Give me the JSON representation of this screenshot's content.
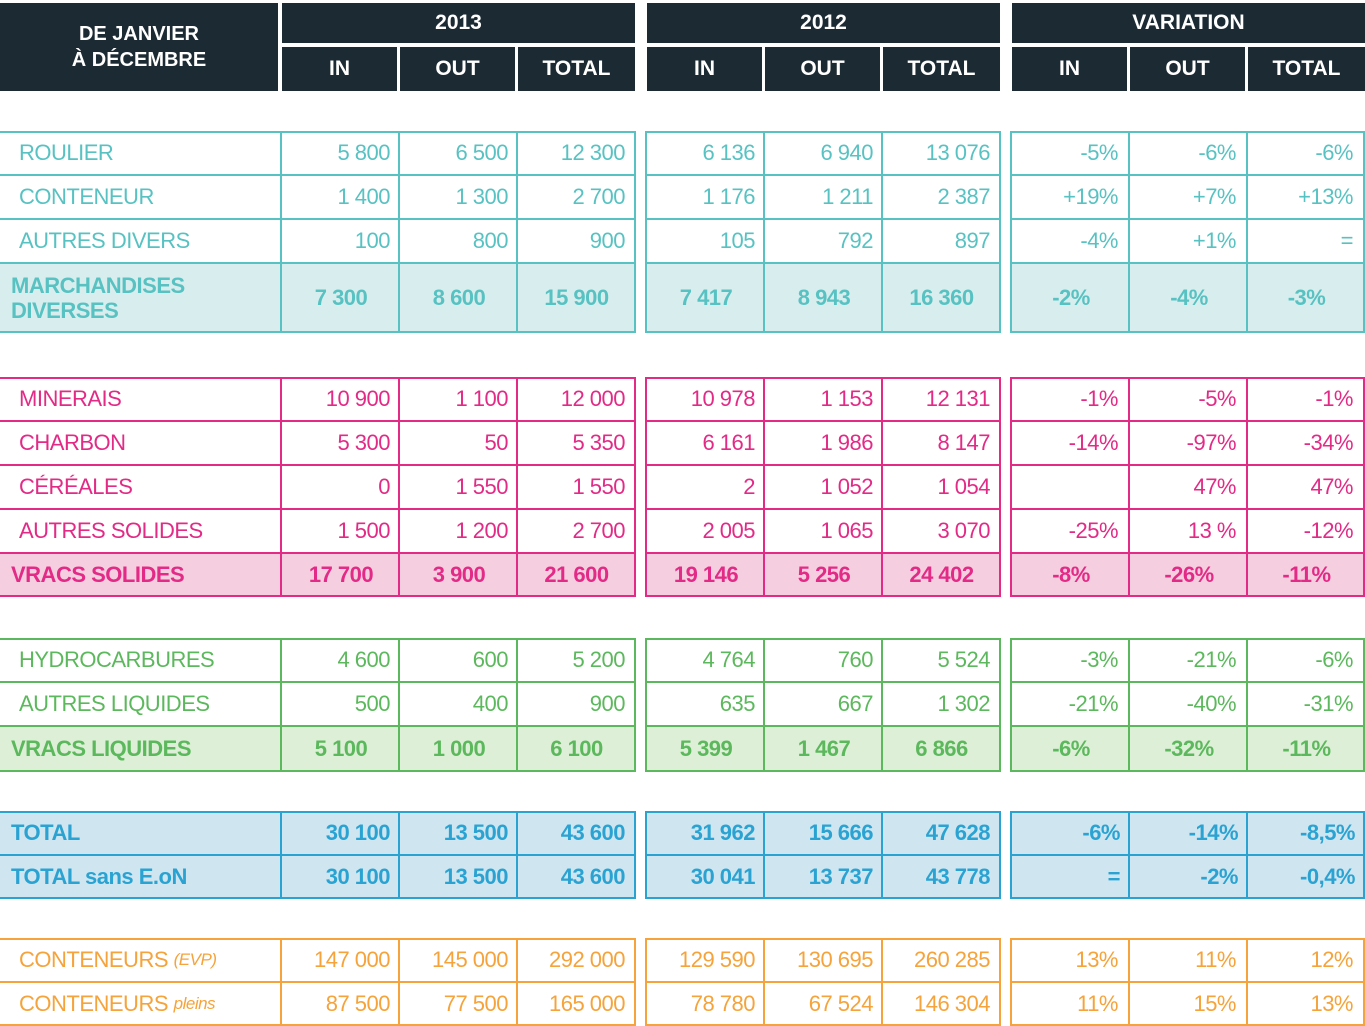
{
  "header": {
    "corner_line1": "DE JANVIER",
    "corner_line2": "À DÉCEMBRE",
    "groups": [
      "2013",
      "2012",
      "VARIATION"
    ],
    "subcols": [
      "IN",
      "OUT",
      "TOTAL",
      "IN",
      "OUT",
      "TOTAL",
      "IN",
      "OUT",
      "TOTAL"
    ]
  },
  "colors": {
    "header_bg": "#1b2a33",
    "teal": "#58c2c2",
    "teal_fill": "#d8eeee",
    "pink": "#e22a86",
    "pink_fill": "#f5cfe0",
    "green": "#5cb85c",
    "green_fill": "#ddefd6",
    "blue": "#2aa3d2",
    "blue_fill": "#cfe6f1",
    "orange": "#f5a33a"
  },
  "sections": [
    {
      "name": "marchandises-diverses",
      "rows": [
        {
          "label": "ROULIER",
          "values": [
            "5 800",
            "6 500",
            "12 300",
            "6 136",
            "6 940",
            "13 076",
            "-5%",
            "-6%",
            "-6%"
          ]
        },
        {
          "label": "CONTENEUR",
          "values": [
            "1 400",
            "1 300",
            "2 700",
            "1 176",
            "1 211",
            "2 387",
            "+19%",
            "+7%",
            "+13%"
          ]
        },
        {
          "label": "AUTRES DIVERS",
          "values": [
            "100",
            "800",
            "900",
            "105",
            "792",
            "897",
            "-4%",
            "+1%",
            "="
          ]
        }
      ],
      "total": {
        "label_line1": "MARCHANDISES",
        "label_line2": "DIVERSES",
        "values": [
          "7 300",
          "8 600",
          "15 900",
          "7 417",
          "8 943",
          "16 360",
          "-2%",
          "-4%",
          "-3%"
        ]
      }
    },
    {
      "name": "vracs-solides",
      "rows": [
        {
          "label": "MINERAIS",
          "values": [
            "10 900",
            "1 100",
            "12 000",
            "10 978",
            "1 153",
            "12 131",
            "-1%",
            "-5%",
            "-1%"
          ]
        },
        {
          "label": "CHARBON",
          "values": [
            "5 300",
            "50",
            "5 350",
            "6 161",
            "1 986",
            "8 147",
            "-14%",
            "-97%",
            "-34%"
          ]
        },
        {
          "label": "CÉRÉALES",
          "values": [
            "0",
            "1 550",
            "1 550",
            "2",
            "1 052",
            "1 054",
            "",
            "47%",
            "47%"
          ]
        },
        {
          "label": "AUTRES SOLIDES",
          "values": [
            "1 500",
            "1 200",
            "2 700",
            "2 005",
            "1 065",
            "3 070",
            "-25%",
            "13 %",
            "-12%"
          ]
        }
      ],
      "total": {
        "label": "VRACS SOLIDES",
        "values": [
          "17 700",
          "3 900",
          "21 600",
          "19 146",
          "5 256",
          "24 402",
          "-8%",
          "-26%",
          "-11%"
        ]
      }
    },
    {
      "name": "vracs-liquides",
      "rows": [
        {
          "label": "HYDROCARBURES",
          "values": [
            "4 600",
            "600",
            "5 200",
            "4 764",
            "760",
            "5 524",
            "-3%",
            "-21%",
            "-6%"
          ]
        },
        {
          "label": "AUTRES LIQUIDES",
          "values": [
            "500",
            "400",
            "900",
            "635",
            "667",
            "1 302",
            "-21%",
            "-40%",
            "-31%"
          ]
        }
      ],
      "total": {
        "label": "VRACS LIQUIDES",
        "values": [
          "5 100",
          "1 000",
          "6 100",
          "5 399",
          "1 467",
          "6 866",
          "-6%",
          "-32%",
          "-11%"
        ]
      }
    },
    {
      "name": "totals",
      "rows": [
        {
          "label": "TOTAL",
          "values": [
            "30 100",
            "13 500",
            "43 600",
            "31 962",
            "15 666",
            "47 628",
            "-6%",
            "-14%",
            "-8,5%"
          ]
        },
        {
          "label": "TOTAL sans E.oN",
          "values": [
            "30 100",
            "13 500",
            "43 600",
            "30 041",
            "13 737",
            "43 778",
            "=",
            "-2%",
            "-0,4%"
          ]
        }
      ]
    },
    {
      "name": "conteneurs",
      "rows": [
        {
          "label": "CONTENEURS",
          "unit": "(EVP)",
          "values": [
            "147 000",
            "145 000",
            "292 000",
            "129 590",
            "130 695",
            "260 285",
            "13%",
            "11%",
            "12%"
          ]
        },
        {
          "label": "CONTENEURS",
          "unit": "pleins",
          "values": [
            "87 500",
            "77 500",
            "165 000",
            "78 780",
            "67 524",
            "146 304",
            "11%",
            "15%",
            "13%"
          ]
        }
      ]
    }
  ]
}
